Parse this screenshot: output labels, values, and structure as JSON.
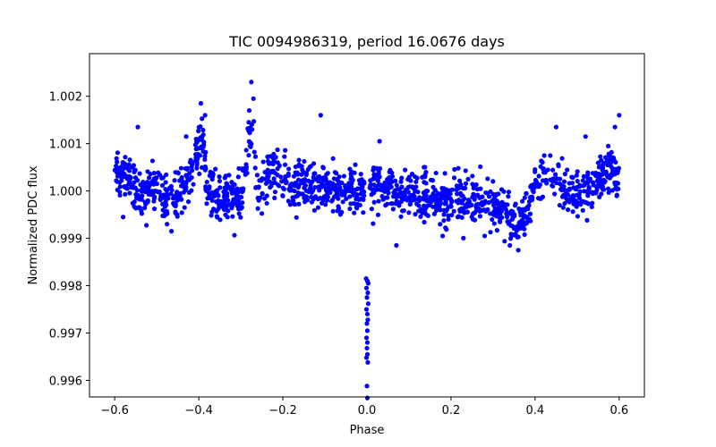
{
  "chart_data": {
    "type": "scatter",
    "title": "TIC 0094986319, period 16.0676 days",
    "xlabel": "Phase",
    "ylabel": "Normalized PDC flux",
    "xlim": [
      -0.66,
      0.66
    ],
    "ylim": [
      0.99565,
      1.0029
    ],
    "x_ticks": [
      -0.6,
      -0.4,
      -0.2,
      0.0,
      0.2,
      0.4,
      0.6
    ],
    "x_tick_labels": [
      "−0.6",
      "−0.4",
      "−0.2",
      "0.0",
      "0.2",
      "0.4",
      "0.6"
    ],
    "y_ticks": [
      0.996,
      0.997,
      0.998,
      0.999,
      1.0,
      1.001,
      1.002
    ],
    "y_tick_labels": [
      "0.996",
      "0.997",
      "0.998",
      "0.999",
      "1.000",
      "1.001",
      "1.002"
    ],
    "grid": false,
    "series": [
      {
        "name": "PDC flux",
        "color": "#0000ff",
        "marker": "circle",
        "baseline_points": [
          [
            -0.6,
            1.0003
          ],
          [
            -0.58,
            1.0004
          ],
          [
            -0.56,
            1.0002
          ],
          [
            -0.54,
            0.9999
          ],
          [
            -0.52,
            1.0
          ],
          [
            -0.5,
            1.0001
          ],
          [
            -0.48,
            0.9999
          ],
          [
            -0.46,
            0.9998
          ],
          [
            -0.44,
            1.0
          ],
          [
            -0.42,
            1.0004
          ],
          [
            -0.4,
            1.0009
          ],
          [
            -0.39,
            1.0012
          ],
          [
            -0.38,
            1.0
          ],
          [
            -0.36,
            0.9998
          ],
          [
            -0.34,
            0.9998
          ],
          [
            -0.32,
            0.9999
          ],
          [
            -0.3,
            0.9998
          ],
          [
            -0.28,
            1.0011
          ],
          [
            -0.27,
            1.001
          ],
          [
            -0.26,
            0.9998
          ],
          [
            -0.24,
            1.0003
          ],
          [
            -0.22,
            1.0004
          ],
          [
            -0.2,
            1.0002
          ],
          [
            -0.18,
            1.0001
          ],
          [
            -0.16,
            1.0002
          ],
          [
            -0.14,
            1.0002
          ],
          [
            -0.12,
            1.0001
          ],
          [
            -0.1,
            1.0001
          ],
          [
            -0.08,
            1.0001
          ],
          [
            -0.06,
            1.0
          ],
          [
            -0.04,
            1.0001
          ],
          [
            -0.02,
            1.0001
          ],
          [
            0.0,
            1.0002
          ],
          [
            0.02,
            1.0001
          ],
          [
            0.04,
            1.0
          ],
          [
            0.06,
            1.0
          ],
          [
            0.08,
            0.9999
          ],
          [
            0.1,
            0.9999
          ],
          [
            0.12,
            0.9999
          ],
          [
            0.14,
            0.9999
          ],
          [
            0.16,
            0.9999
          ],
          [
            0.18,
            0.9998
          ],
          [
            0.2,
            0.9998
          ],
          [
            0.22,
            0.9998
          ],
          [
            0.24,
            0.9998
          ],
          [
            0.26,
            0.9998
          ],
          [
            0.28,
            0.9998
          ],
          [
            0.3,
            0.9997
          ],
          [
            0.32,
            0.9996
          ],
          [
            0.34,
            0.9994
          ],
          [
            0.36,
            0.9993
          ],
          [
            0.38,
            0.9996
          ],
          [
            0.4,
            1.0001
          ],
          [
            0.42,
            1.0003
          ],
          [
            0.44,
            1.0003
          ],
          [
            0.46,
            1.0002
          ],
          [
            0.48,
            1.0
          ],
          [
            0.5,
            0.9999
          ],
          [
            0.52,
            1.0
          ],
          [
            0.54,
            1.0001
          ],
          [
            0.56,
            1.0003
          ],
          [
            0.58,
            1.0005
          ],
          [
            0.6,
            1.0001
          ]
        ],
        "scatter_sigma": 0.00024,
        "outlier_points": [
          [
            -0.275,
            1.0023
          ],
          [
            -0.27,
            1.00195
          ],
          [
            -0.28,
            1.0017
          ],
          [
            -0.395,
            1.00185
          ],
          [
            -0.385,
            1.0016
          ],
          [
            -0.545,
            1.00135
          ],
          [
            -0.43,
            1.00115
          ],
          [
            -0.11,
            1.0016
          ],
          [
            0.6,
            1.0016
          ],
          [
            0.59,
            1.00135
          ],
          [
            0.45,
            1.00135
          ],
          [
            0.52,
            1.00115
          ],
          [
            -0.465,
            0.99915
          ],
          [
            -0.58,
            0.99945
          ],
          [
            0.36,
            0.99875
          ],
          [
            0.34,
            0.99885
          ],
          [
            0.07,
            0.99885
          ],
          [
            0.18,
            0.99905
          ],
          [
            0.28,
            0.99905
          ],
          [
            0.03,
            1.00105
          ]
        ],
        "transit_points": [
          [
            -0.002,
            0.99815
          ],
          [
            0.001,
            0.9981
          ],
          [
            0.003,
            0.99805
          ],
          [
            -0.001,
            0.99795
          ],
          [
            0.002,
            0.99785
          ],
          [
            0.0,
            0.99775
          ],
          [
            0.003,
            0.99762
          ],
          [
            -0.001,
            0.9975
          ],
          [
            0.001,
            0.9974
          ],
          [
            0.002,
            0.99728
          ],
          [
            0.0,
            0.9972
          ],
          [
            0.001,
            0.99705
          ],
          [
            -0.001,
            0.9969
          ],
          [
            0.001,
            0.9968
          ],
          [
            0.0,
            0.99668
          ],
          [
            0.001,
            0.99655
          ],
          [
            -0.001,
            0.99648
          ],
          [
            0.002,
            0.99638
          ],
          [
            0.0,
            0.99588
          ],
          [
            0.001,
            0.99563
          ]
        ]
      }
    ]
  }
}
